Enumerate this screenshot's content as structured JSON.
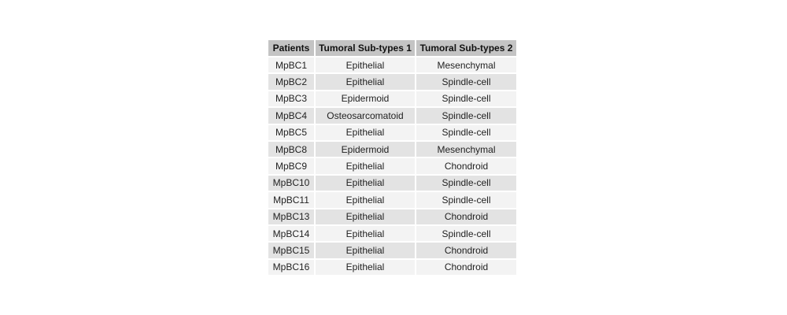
{
  "table": {
    "headers": [
      "Patients",
      "Tumoral Sub-types 1",
      "Tumoral Sub-types 2"
    ],
    "rows": [
      [
        "MpBC1",
        "Epithelial",
        "Mesenchymal"
      ],
      [
        "MpBC2",
        "Epithelial",
        "Spindle-cell"
      ],
      [
        "MpBC3",
        "Epidermoid",
        "Spindle-cell"
      ],
      [
        "MpBC4",
        "Osteosarcomatoid",
        "Spindle-cell"
      ],
      [
        "MpBC5",
        "Epithelial",
        "Spindle-cell"
      ],
      [
        "MpBC8",
        "Epidermoid",
        "Mesenchymal"
      ],
      [
        "MpBC9",
        "Epithelial",
        "Chondroid"
      ],
      [
        "MpBC10",
        "Epithelial",
        "Spindle-cell"
      ],
      [
        "MpBC11",
        "Epithelial",
        "Spindle-cell"
      ],
      [
        "MpBC13",
        "Epithelial",
        "Chondroid"
      ],
      [
        "MpBC14",
        "Epithelial",
        "Spindle-cell"
      ],
      [
        "MpBC15",
        "Epithelial",
        "Chondroid"
      ],
      [
        "MpBC16",
        "Epithelial",
        "Chondroid"
      ]
    ]
  },
  "colors": {
    "header_bg": "#c4c4c4",
    "row_odd_bg": "#f3f3f3",
    "row_even_bg": "#e3e3e3"
  }
}
